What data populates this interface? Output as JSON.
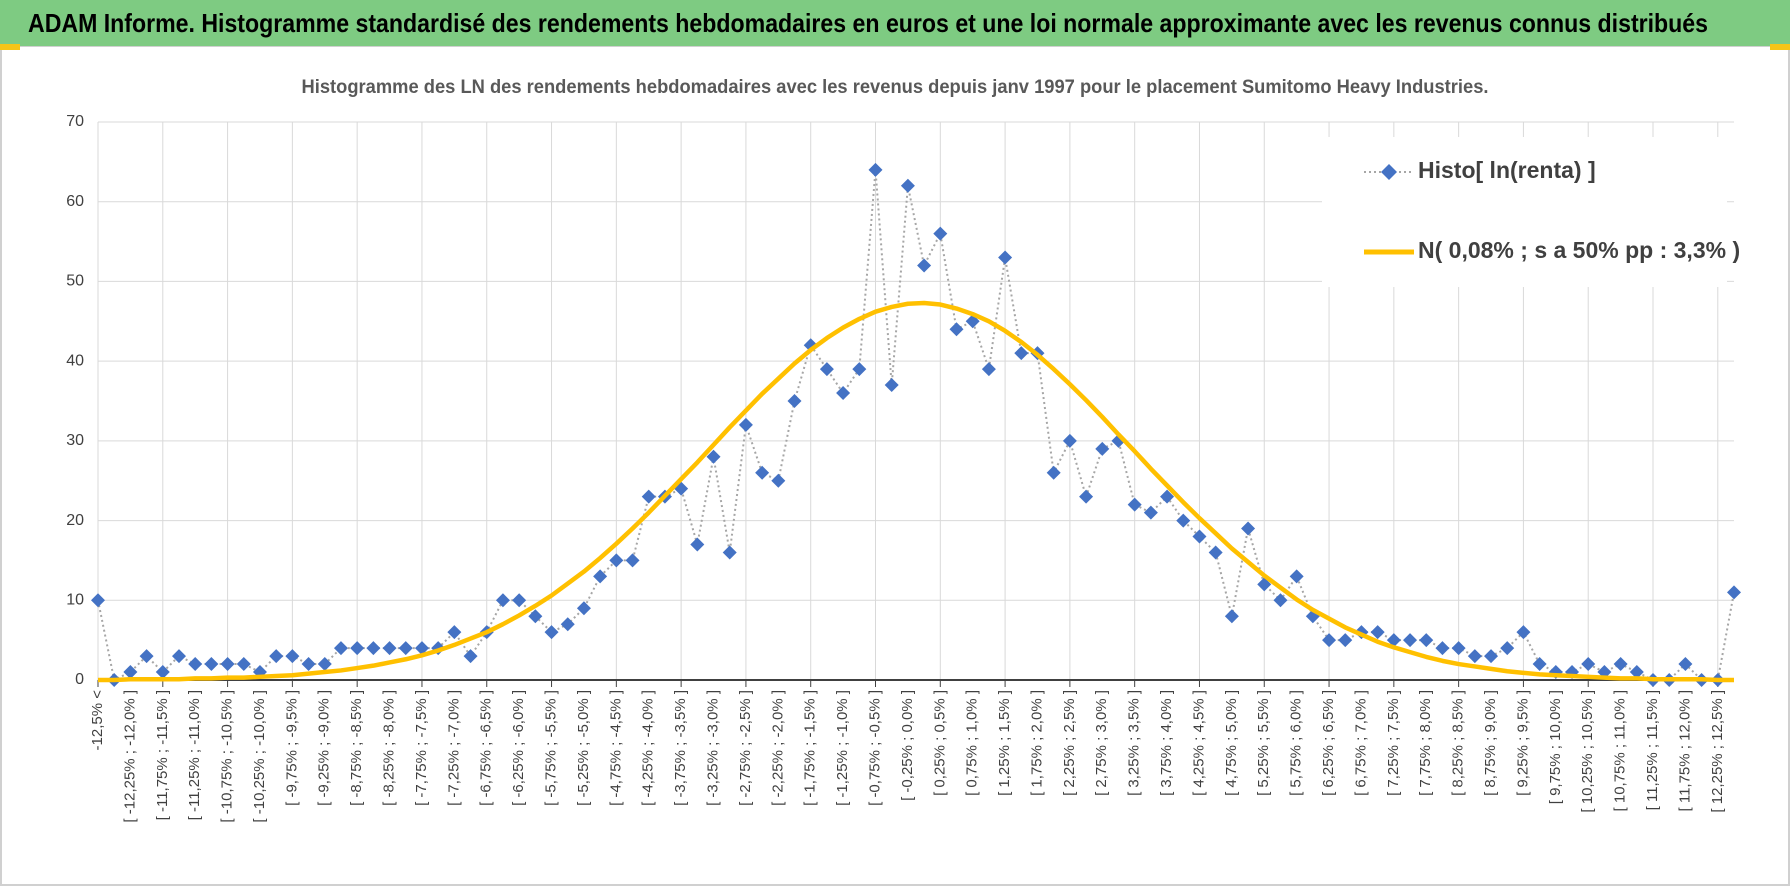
{
  "header": {
    "title": "ADAM Informe. Histogramme standardisé des rendements hebdomadaires en euros et une loi normale approximante avec les revenus connus distribués"
  },
  "chart_data": {
    "type": "line",
    "title": "Histogramme des LN des rendements hebdomadaires avec les revenus depuis janv 1997 pour le placement Sumitomo Heavy Industries.",
    "categories": [
      "-12,5% <",
      null,
      "[ -12,25% ; -12,0% ]",
      null,
      "[ -11,75% ; -11,5% ]",
      null,
      "[ -11,25% ; -11,0% ]",
      null,
      "[ -10,75% ; -10,5% ]",
      null,
      "[ -10,25% ; -10,0% ]",
      null,
      "[ -9,75% ; -9,5% ]",
      null,
      "[ -9,25% ; -9,0% ]",
      null,
      "[ -8,75% ; -8,5% ]",
      null,
      "[ -8,25% ; -8,0% ]",
      null,
      "[ -7,75% ; -7,5% ]",
      null,
      "[ -7,25% ; -7,0% ]",
      null,
      "[ -6,75% ; -6,5% ]",
      null,
      "[ -6,25% ; -6,0% ]",
      null,
      "[ -5,75% ; -5,5% ]",
      null,
      "[ -5,25% ; -5,0% ]",
      null,
      "[ -4,75% ; -4,5% ]",
      null,
      "[ -4,25% ; -4,0% ]",
      null,
      "[ -3,75% ; -3,5% ]",
      null,
      "[ -3,25% ; -3,0% ]",
      null,
      "[ -2,75% ; -2,5% ]",
      null,
      "[ -2,25% ; -2,0% ]",
      null,
      "[ -1,75% ; -1,5% ]",
      null,
      "[ -1,25% ; -1,0% ]",
      null,
      "[ -0,75% ; -0,5% ]",
      null,
      "[ -0,25% ; 0,0% ]",
      null,
      "[ 0,25% ; 0,5% ]",
      null,
      "[ 0,75% ; 1,0% ]",
      null,
      "[ 1,25% ; 1,5% ]",
      null,
      "[ 1,75% ; 2,0% ]",
      null,
      "[ 2,25% ; 2,5% ]",
      null,
      "[ 2,75% ; 3,0% ]",
      null,
      "[ 3,25% ; 3,5% ]",
      null,
      "[ 3,75% ; 4,0% ]",
      null,
      "[ 4,25% ; 4,5% ]",
      null,
      "[ 4,75% ; 5,0% ]",
      null,
      "[ 5,25% ; 5,5% ]",
      null,
      "[ 5,75% ; 6,0% ]",
      null,
      "[ 6,25% ; 6,5% ]",
      null,
      "[ 6,75% ; 7,0% ]",
      null,
      "[ 7,25% ; 7,5% ]",
      null,
      "[ 7,75% ; 8,0% ]",
      null,
      "[ 8,25% ; 8,5% ]",
      null,
      "[ 8,75% ; 9,0% ]",
      null,
      "[ 9,25% ; 9,5% ]",
      null,
      "[ 9,75% ; 10,0% ]",
      null,
      "[ 10,25% ; 10,5% ]",
      null,
      "[ 10,75% ; 11,0% ]",
      null,
      "[ 11,25% ; 11,5% ]",
      null,
      "[ 11,75% ; 12,0% ]",
      null,
      "[ 12,25% ; 12,5% ]",
      null
    ],
    "series": [
      {
        "name": "Histo[ ln(renta) ]",
        "color": "#4472c4",
        "line_color": "#a6a6a6",
        "marker": "diamond",
        "values": [
          10,
          0,
          1,
          3,
          1,
          3,
          2,
          2,
          2,
          2,
          1,
          3,
          3,
          2,
          2,
          4,
          4,
          4,
          4,
          4,
          4,
          4,
          6,
          3,
          6,
          10,
          10,
          8,
          6,
          7,
          9,
          13,
          15,
          15,
          23,
          23,
          24,
          17,
          28,
          16,
          32,
          26,
          25,
          35,
          42,
          39,
          36,
          39,
          64,
          37,
          62,
          52,
          56,
          44,
          45,
          39,
          53,
          41,
          41,
          26,
          30,
          23,
          29,
          30,
          22,
          21,
          23,
          20,
          18,
          16,
          8,
          19,
          12,
          10,
          13,
          8,
          5,
          5,
          6,
          6,
          5,
          5,
          5,
          4,
          4,
          3,
          3,
          4,
          6,
          2,
          1,
          1,
          2,
          1,
          2,
          1,
          0,
          0,
          2,
          0,
          0,
          11
        ]
      },
      {
        "name": "N( 0,08% ; s a 50% pp : 3,3% )",
        "color": "#ffc000",
        "values": [
          0.0,
          0.0,
          0.1,
          0.1,
          0.1,
          0.1,
          0.2,
          0.2,
          0.3,
          0.3,
          0.4,
          0.5,
          0.6,
          0.8,
          1.0,
          1.2,
          1.5,
          1.8,
          2.2,
          2.6,
          3.1,
          3.7,
          4.4,
          5.2,
          6.0,
          7.0,
          8.1,
          9.3,
          10.6,
          12.1,
          13.6,
          15.3,
          17.1,
          19.0,
          21.0,
          23.1,
          25.2,
          27.3,
          29.5,
          31.7,
          33.8,
          35.9,
          37.8,
          39.7,
          41.4,
          42.9,
          44.2,
          45.3,
          46.2,
          46.8,
          47.2,
          47.3,
          47.1,
          46.6,
          45.9,
          45.0,
          43.8,
          42.4,
          40.8,
          39.0,
          37.1,
          35.1,
          33.0,
          30.8,
          28.7,
          26.5,
          24.4,
          22.3,
          20.3,
          18.4,
          16.5,
          14.8,
          13.1,
          11.6,
          10.1,
          8.8,
          7.7,
          6.6,
          5.7,
          4.8,
          4.1,
          3.5,
          2.9,
          2.4,
          2.0,
          1.7,
          1.4,
          1.1,
          0.9,
          0.7,
          0.6,
          0.5,
          0.4,
          0.3,
          0.2,
          0.2,
          0.1,
          0.1,
          0.1,
          0.1,
          0.0,
          0.0
        ]
      }
    ],
    "ylim": [
      0,
      70
    ],
    "yticks": [
      0,
      10,
      20,
      30,
      40,
      50,
      60,
      70
    ],
    "grid": true,
    "legend": "upper right"
  }
}
